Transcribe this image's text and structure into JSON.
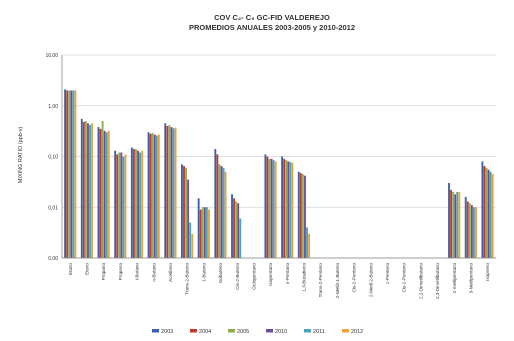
{
  "chart_data": {
    "type": "bar",
    "title": "COV C₂- C₉ GC-FID VALDEREJO",
    "subtitle": "PROMEDIOS ANUALES 2003-2005 y 2010-2012",
    "ylabel": "MIXING RATIO (ppb-v)",
    "xlabel": "",
    "yscale": "log",
    "ylim": [
      0.001,
      10
    ],
    "yticks": [
      10,
      1,
      0.1,
      0.01,
      0.001
    ],
    "ytick_labels": [
      "10,00",
      "1,00",
      "0,10",
      "0,01",
      "0,00"
    ],
    "grid": true,
    "legend_position": "bottom",
    "categories": [
      "Etano",
      "Eteno",
      "Propano",
      "Propeno",
      "i-Butano",
      "n-Butano",
      "Acetileno",
      "Trans-2-Buteno",
      "1-Buteno",
      "Isobuteno",
      "Cis-2-Buteno",
      "Ciclopentano",
      "Isopentano",
      "n-Pentano",
      "1,3-Butadieno",
      "Trans-2-Penteno",
      "2-MetilI-1-Buteno",
      "Cis-2-Penteno",
      "2-Metil-2-Buteno",
      "1-Penteno",
      "Cis-2-Penteno",
      "2,2-Dimetilbutano",
      "2,3-Dimetilbutano",
      "2-metilpentano",
      "3-Metilpentano",
      "Isopreno"
    ],
    "series": [
      {
        "name": "2003",
        "color": "#3d5fa8",
        "values": [
          2.1,
          0.55,
          0.38,
          0.13,
          0.15,
          0.3,
          0.45,
          0.07,
          0.015,
          0.14,
          0.018,
          null,
          0.11,
          0.1,
          0.05,
          null,
          null,
          null,
          null,
          null,
          null,
          null,
          null,
          0.03,
          0.016,
          0.08
        ]
      },
      {
        "name": "2004",
        "color": "#c0392b",
        "values": [
          2.0,
          0.48,
          0.35,
          0.11,
          0.14,
          0.28,
          0.4,
          0.065,
          0.009,
          0.11,
          0.015,
          null,
          0.1,
          0.09,
          0.047,
          null,
          null,
          null,
          null,
          null,
          null,
          null,
          null,
          0.022,
          0.013,
          0.065
        ]
      },
      {
        "name": "2005",
        "color": "#8fae4b",
        "values": [
          2.0,
          0.5,
          0.5,
          0.12,
          0.14,
          0.29,
          0.42,
          0.06,
          0.01,
          0.07,
          0.013,
          null,
          0.09,
          0.085,
          0.045,
          null,
          null,
          null,
          null,
          null,
          null,
          null,
          null,
          0.02,
          0.012,
          0.06
        ]
      },
      {
        "name": "2010",
        "color": "#6a4f96",
        "values": [
          2.0,
          0.45,
          0.32,
          0.12,
          0.13,
          0.27,
          0.38,
          0.035,
          0.01,
          0.065,
          0.012,
          null,
          0.09,
          0.08,
          0.042,
          null,
          null,
          null,
          null,
          null,
          null,
          null,
          null,
          0.018,
          0.011,
          0.055
        ]
      },
      {
        "name": "2011",
        "color": "#4aa3b8",
        "values": [
          2.0,
          0.42,
          0.3,
          0.1,
          0.12,
          0.26,
          0.36,
          0.005,
          0.01,
          0.06,
          0.006,
          null,
          0.085,
          0.078,
          0.004,
          null,
          null,
          null,
          null,
          null,
          null,
          null,
          null,
          0.02,
          0.01,
          0.05
        ]
      },
      {
        "name": "2012",
        "color": "#e8a33a",
        "values": [
          2.0,
          0.45,
          0.32,
          0.11,
          0.13,
          0.27,
          0.37,
          0.003,
          0.009,
          0.05,
          null,
          null,
          0.08,
          0.075,
          0.003,
          null,
          null,
          null,
          null,
          null,
          null,
          null,
          null,
          0.02,
          0.01,
          0.045
        ]
      }
    ]
  }
}
